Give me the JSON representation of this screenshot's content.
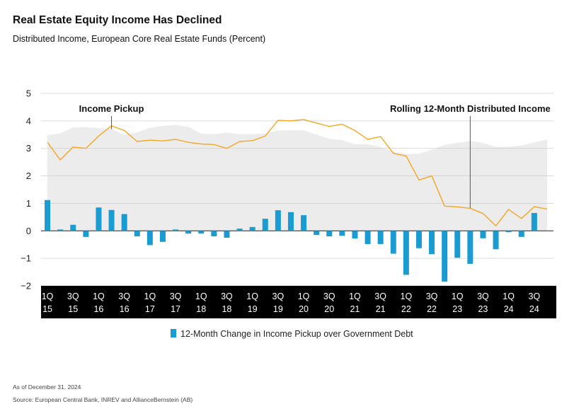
{
  "header": {
    "title": "Real Estate Equity Income Has Declined",
    "subtitle": "Distributed Income, European Core Real Estate Funds (Percent)"
  },
  "footer": {
    "as_of": "As of December 31, 2024",
    "source": "Source: European Central Bank, INREV and AllianceBernstein (AB)"
  },
  "colors": {
    "bars": "#1a9bd1",
    "line": "#f5a623",
    "area": "#ececec",
    "axis_band": "#000000"
  },
  "chart_data": {
    "type": "bar",
    "title": "Real Estate Equity Income Has Declined",
    "subtitle": "Distributed Income, European Core Real Estate Funds (Percent)",
    "xlabel": "",
    "ylabel": "",
    "ylim": [
      -2,
      5
    ],
    "yticks": [
      "5",
      "4",
      "3",
      "2",
      "1",
      "0",
      "−1",
      "−2"
    ],
    "grid": true,
    "legend_position": "bottom-center",
    "x_tick_labels": [
      {
        "q": "1Q",
        "y": "15"
      },
      {
        "q": "3Q",
        "y": "15"
      },
      {
        "q": "1Q",
        "y": "16"
      },
      {
        "q": "3Q",
        "y": "16"
      },
      {
        "q": "1Q",
        "y": "17"
      },
      {
        "q": "3Q",
        "y": "17"
      },
      {
        "q": "1Q",
        "y": "18"
      },
      {
        "q": "3Q",
        "y": "18"
      },
      {
        "q": "1Q",
        "y": "19"
      },
      {
        "q": "3Q",
        "y": "19"
      },
      {
        "q": "1Q",
        "y": "20"
      },
      {
        "q": "3Q",
        "y": "20"
      },
      {
        "q": "1Q",
        "y": "21"
      },
      {
        "q": "3Q",
        "y": "21"
      },
      {
        "q": "1Q",
        "y": "22"
      },
      {
        "q": "3Q",
        "y": "22"
      },
      {
        "q": "1Q",
        "y": "23"
      },
      {
        "q": "3Q",
        "y": "23"
      },
      {
        "q": "1Q",
        "y": "24"
      },
      {
        "q": "3Q",
        "y": "24"
      }
    ],
    "categories": [
      "1Q15",
      "2Q15",
      "3Q15",
      "4Q15",
      "1Q16",
      "2Q16",
      "3Q16",
      "4Q16",
      "1Q17",
      "2Q17",
      "3Q17",
      "4Q17",
      "1Q18",
      "2Q18",
      "3Q18",
      "4Q18",
      "1Q19",
      "2Q19",
      "3Q19",
      "4Q19",
      "1Q20",
      "2Q20",
      "3Q20",
      "4Q20",
      "1Q21",
      "2Q21",
      "3Q21",
      "4Q21",
      "1Q22",
      "2Q22",
      "3Q22",
      "4Q22",
      "1Q23",
      "2Q23",
      "3Q23",
      "4Q23",
      "1Q24",
      "2Q24",
      "3Q24",
      "4Q24"
    ],
    "series": [
      {
        "name": "12-Month Change in Income Pickup over Government Debt",
        "kind": "bar",
        "values": [
          1.12,
          0.05,
          0.22,
          -0.22,
          0.85,
          0.76,
          0.61,
          -0.2,
          -0.52,
          -0.4,
          0.05,
          -0.1,
          -0.1,
          -0.2,
          -0.25,
          0.08,
          0.14,
          0.44,
          0.75,
          0.68,
          0.57,
          -0.15,
          -0.2,
          -0.18,
          -0.28,
          -0.48,
          -0.48,
          -0.83,
          -1.6,
          -0.63,
          -0.85,
          -1.85,
          -0.98,
          -1.2,
          -0.27,
          -0.67,
          -0.05,
          -0.22,
          0.65,
          null
        ]
      },
      {
        "name": "Rolling 12-Month Distributed Income",
        "kind": "line",
        "values": [
          3.22,
          2.58,
          3.05,
          3.0,
          3.45,
          3.82,
          3.65,
          3.25,
          3.3,
          3.27,
          3.33,
          3.22,
          3.16,
          3.14,
          3.0,
          3.25,
          3.28,
          3.45,
          4.02,
          4.0,
          4.05,
          3.92,
          3.8,
          3.88,
          3.65,
          3.33,
          3.43,
          2.82,
          2.72,
          1.85,
          2.0,
          0.9,
          0.87,
          0.82,
          0.63,
          0.18,
          0.78,
          0.45,
          0.88,
          0.79
        ]
      },
      {
        "name": "Income Pickup",
        "kind": "area",
        "values": [
          3.48,
          3.55,
          3.76,
          3.77,
          3.74,
          3.7,
          3.5,
          3.58,
          3.75,
          3.82,
          3.85,
          3.78,
          3.53,
          3.52,
          3.57,
          3.52,
          3.52,
          3.55,
          3.65,
          3.66,
          3.66,
          3.5,
          3.35,
          3.3,
          3.15,
          3.15,
          3.05,
          2.88,
          2.8,
          2.8,
          2.95,
          3.13,
          3.2,
          3.27,
          3.2,
          3.05,
          3.06,
          3.1,
          3.22,
          3.32
        ]
      }
    ],
    "annotations": [
      {
        "text": "Income Pickup",
        "target": "area",
        "index": 5
      },
      {
        "text": "Rolling 12-Month Distributed Income",
        "target": "line",
        "index": 33
      }
    ]
  }
}
